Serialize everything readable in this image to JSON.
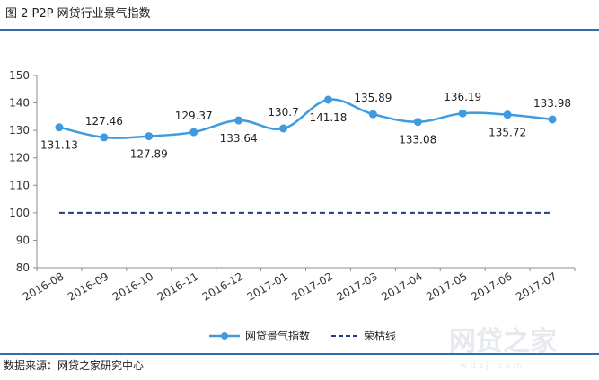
{
  "figure_title": "图 2   P2P 网贷行业景气指数",
  "source_note": "数据来源：网贷之家研究中心",
  "watermark": {
    "text": "网贷之家",
    "subtext": "w d z j . c o m"
  },
  "colors": {
    "accent": "#2f6fae",
    "series_line": "#3e9be0",
    "dashed_line": "#1f3d7a"
  },
  "chart_data": {
    "type": "line",
    "categories": [
      "2016-08",
      "2016-09",
      "2016-10",
      "2016-11",
      "2016-12",
      "2017-01",
      "2017-02",
      "2017-03",
      "2017-04",
      "2017-05",
      "2017-06",
      "2017-07"
    ],
    "ylim": [
      80,
      150
    ],
    "yticks": [
      80,
      90,
      100,
      110,
      120,
      130,
      140,
      150
    ],
    "grid": false,
    "legend_position": "bottom",
    "series": [
      {
        "name": "网贷景气指数",
        "style": "solid-line-markers",
        "values": [
          131.13,
          127.46,
          127.89,
          129.37,
          133.64,
          130.7,
          141.18,
          135.89,
          133.08,
          136.19,
          135.72,
          133.98
        ],
        "labels": [
          "131.13",
          "127.46",
          "127.89",
          "129.37",
          "133.64",
          "130.7",
          "141.18",
          "135.89",
          "133.08",
          "136.19",
          "135.72",
          "133.98"
        ]
      },
      {
        "name": "荣枯线",
        "style": "dashed",
        "values": [
          100,
          100,
          100,
          100,
          100,
          100,
          100,
          100,
          100,
          100,
          100,
          100
        ]
      }
    ]
  }
}
